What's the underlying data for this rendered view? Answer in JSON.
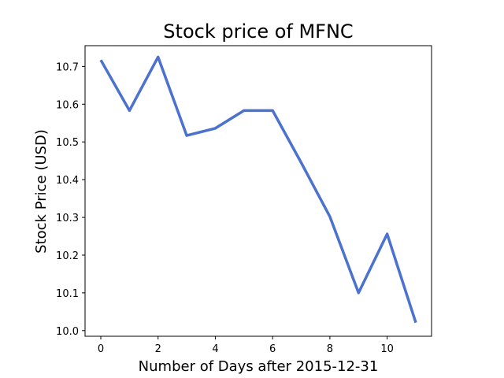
{
  "chart_data": {
    "type": "line",
    "title": "Stock price of MFNC",
    "xlabel": "Number of Days after 2015-12-31",
    "ylabel": "Stock Price (USD)",
    "xlim": [
      -0.55,
      11.55
    ],
    "ylim": [
      9.985,
      10.755
    ],
    "x_ticks": [
      0,
      2,
      4,
      6,
      8,
      10
    ],
    "y_ticks": [
      10.0,
      10.1,
      10.2,
      10.3,
      10.4,
      10.5,
      10.6,
      10.7
    ],
    "grid": false,
    "legend": "none",
    "series": [
      {
        "color": "#4c72d0",
        "x": [
          0,
          1,
          2,
          3,
          4,
          5,
          6,
          7,
          8,
          9,
          10,
          11
        ],
        "y": [
          10.717,
          10.583,
          10.725,
          10.517,
          10.536,
          10.583,
          10.583,
          10.445,
          10.302,
          10.1,
          10.256,
          10.021
        ]
      }
    ]
  }
}
